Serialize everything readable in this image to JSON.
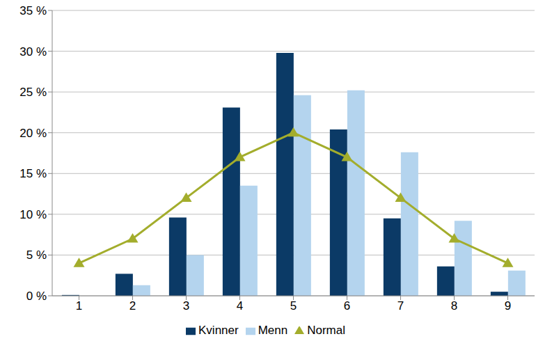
{
  "chart_data": {
    "type": "bar",
    "categories": [
      "1",
      "2",
      "3",
      "4",
      "5",
      "6",
      "7",
      "8",
      "9"
    ],
    "series": [
      {
        "name": "Kvinner",
        "type": "bar",
        "color": "#0b3a66",
        "values": [
          0.1,
          2.7,
          9.6,
          23.1,
          29.8,
          20.4,
          9.5,
          3.6,
          0.5
        ]
      },
      {
        "name": "Menn",
        "type": "bar",
        "color": "#b4d4ee",
        "values": [
          0,
          1.3,
          5.0,
          13.5,
          24.6,
          25.2,
          17.6,
          9.2,
          3.1
        ]
      },
      {
        "name": "Normal",
        "type": "line",
        "color": "#a3ad2c",
        "marker": "triangle",
        "values": [
          4,
          7,
          12,
          17,
          20,
          17,
          12,
          7,
          4
        ]
      }
    ],
    "ylim": [
      0,
      35
    ],
    "yticks": [
      {
        "value": 0,
        "label": "0 %"
      },
      {
        "value": 5,
        "label": "5 %"
      },
      {
        "value": 10,
        "label": "10 %"
      },
      {
        "value": 15,
        "label": "15 %"
      },
      {
        "value": 20,
        "label": "20 %"
      },
      {
        "value": 25,
        "label": "25 %"
      },
      {
        "value": 30,
        "label": "30 %"
      },
      {
        "value": 35,
        "label": "35 %"
      }
    ],
    "grid": true,
    "legend": "bottom"
  }
}
